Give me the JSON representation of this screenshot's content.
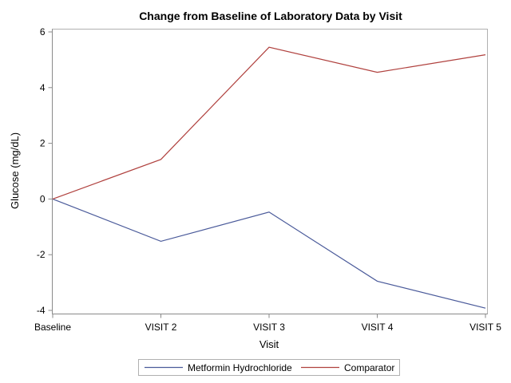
{
  "chart_data": {
    "type": "line",
    "title": "Change from Baseline of Laboratory Data by Visit",
    "xlabel": "Visit",
    "ylabel": "Glucose (mg/dL)",
    "categories": [
      "Baseline",
      "VISIT 2",
      "VISIT 3",
      "VISIT 4",
      "VISIT 5"
    ],
    "ylim": [
      -4,
      6
    ],
    "yticks": [
      -4,
      -2,
      0,
      2,
      4,
      6
    ],
    "grid": false,
    "legend_position": "bottom",
    "series": [
      {
        "name": "Metformin Hydrochloride",
        "color": "#4a5a9a",
        "values": [
          0,
          -1.52,
          -0.47,
          -2.95,
          -3.92
        ]
      },
      {
        "name": "Comparator",
        "color": "#b0413e",
        "values": [
          0,
          1.42,
          5.45,
          4.55,
          5.18
        ]
      }
    ]
  }
}
